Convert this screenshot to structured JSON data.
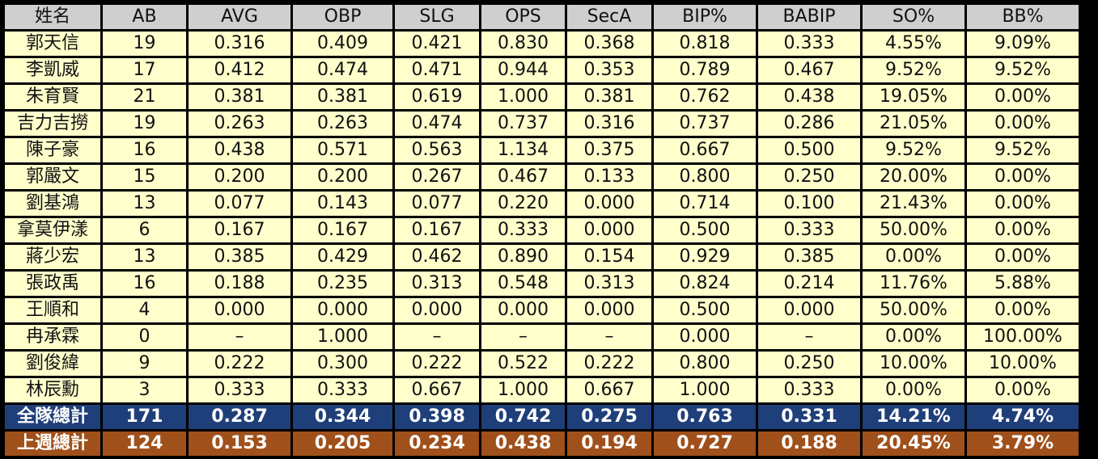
{
  "headers": [
    "姓名",
    "AB",
    "AVG",
    "OBP",
    "SLG",
    "OPS",
    "SecA",
    "BIP%",
    "BABIP",
    "SO%",
    "BB%"
  ],
  "rows": [
    [
      "郭天信",
      "19",
      "0.316",
      "0.409",
      "0.421",
      "0.830",
      "0.368",
      "0.818",
      "0.333",
      "4.55%",
      "9.09%"
    ],
    [
      "李凱威",
      "17",
      "0.412",
      "0.474",
      "0.471",
      "0.944",
      "0.353",
      "0.789",
      "0.467",
      "9.52%",
      "9.52%"
    ],
    [
      "朱育賢",
      "21",
      "0.381",
      "0.381",
      "0.619",
      "1.000",
      "0.381",
      "0.762",
      "0.438",
      "19.05%",
      "0.00%"
    ],
    [
      "吉力吉撈",
      "19",
      "0.263",
      "0.263",
      "0.474",
      "0.737",
      "0.316",
      "0.737",
      "0.286",
      "21.05%",
      "0.00%"
    ],
    [
      "陳子豪",
      "16",
      "0.438",
      "0.571",
      "0.563",
      "1.134",
      "0.375",
      "0.667",
      "0.500",
      "9.52%",
      "9.52%"
    ],
    [
      "郭嚴文",
      "15",
      "0.200",
      "0.200",
      "0.267",
      "0.467",
      "0.133",
      "0.800",
      "0.250",
      "20.00%",
      "0.00%"
    ],
    [
      "劉基鴻",
      "13",
      "0.077",
      "0.143",
      "0.077",
      "0.220",
      "0.000",
      "0.714",
      "0.100",
      "21.43%",
      "0.00%"
    ],
    [
      "拿莫伊漾",
      "6",
      "0.167",
      "0.167",
      "0.167",
      "0.333",
      "0.000",
      "0.500",
      "0.333",
      "50.00%",
      "0.00%"
    ],
    [
      "蔣少宏",
      "13",
      "0.385",
      "0.429",
      "0.462",
      "0.890",
      "0.154",
      "0.929",
      "0.385",
      "0.00%",
      "0.00%"
    ],
    [
      "張政禹",
      "16",
      "0.188",
      "0.235",
      "0.313",
      "0.548",
      "0.313",
      "0.824",
      "0.214",
      "11.76%",
      "5.88%"
    ],
    [
      "王順和",
      "4",
      "0.000",
      "0.000",
      "0.000",
      "0.000",
      "0.000",
      "0.500",
      "0.000",
      "50.00%",
      "0.00%"
    ],
    [
      "冉承霖",
      "0",
      "–",
      "1.000",
      "–",
      "–",
      "–",
      "0.000",
      "–",
      "0.00%",
      "100.00%"
    ],
    [
      "劉俊緯",
      "9",
      "0.222",
      "0.300",
      "0.222",
      "0.522",
      "0.222",
      "0.800",
      "0.250",
      "10.00%",
      "10.00%"
    ],
    [
      "林辰勳",
      "3",
      "0.333",
      "0.333",
      "0.667",
      "1.000",
      "0.667",
      "1.000",
      "0.333",
      "0.00%",
      "0.00%"
    ]
  ],
  "team_total": [
    "全隊總計",
    "171",
    "0.287",
    "0.344",
    "0.398",
    "0.742",
    "0.275",
    "0.763",
    "0.331",
    "14.21%",
    "4.74%"
  ],
  "last_week_total": [
    "上週總計",
    "124",
    "0.153",
    "0.205",
    "0.234",
    "0.438",
    "0.194",
    "0.727",
    "0.188",
    "20.45%",
    "3.79%"
  ],
  "colors": {
    "header_bg": "#cfcfcf",
    "row_bg": "#ffffcc",
    "team_total_bg": "#1f3f7a",
    "last_week_bg": "#a0501a",
    "grid": "#000000"
  }
}
